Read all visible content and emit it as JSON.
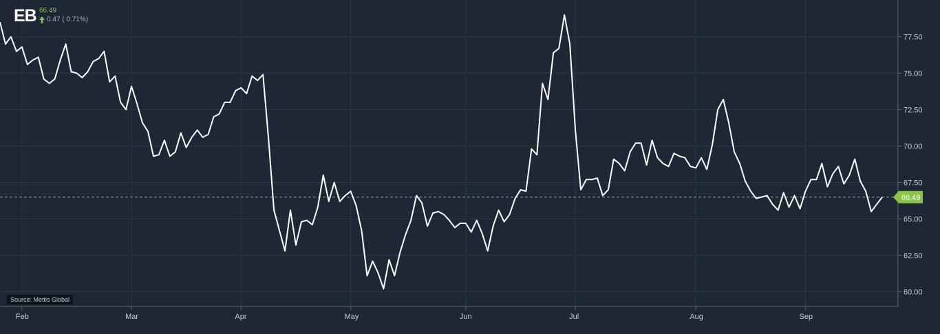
{
  "header": {
    "ticker": "EB",
    "price": "66.49",
    "change": "0.47 ( 0.71%)"
  },
  "source": "Source: Mettis Global",
  "colors": {
    "background": "#1e2834",
    "line": "#ffffff",
    "grid": "#2b3744",
    "up": "#8bc34a",
    "last_price_bg": "#8bc34a"
  },
  "icons": {
    "change_direction": "arrow-up-icon"
  },
  "chart_data": {
    "type": "line",
    "title": "",
    "xlabel": "",
    "ylabel": "",
    "x_ticks": [
      {
        "label": "Feb",
        "index": 4
      },
      {
        "label": "Mar",
        "index": 24
      },
      {
        "label": "Apr",
        "index": 44
      },
      {
        "label": "May",
        "index": 64
      },
      {
        "label": "Jun",
        "index": 85
      },
      {
        "label": "Jul",
        "index": 105
      },
      {
        "label": "Aug",
        "index": 127
      },
      {
        "label": "Sep",
        "index": 147
      }
    ],
    "y_ticks": [
      "60.00",
      "62.50",
      "65.00",
      "67.50",
      "70.00",
      "72.50",
      "75.00",
      "77.50"
    ],
    "ylim": [
      59.5,
      79.5
    ],
    "grid": true,
    "last_value": "66.49",
    "reference_line": 66.49,
    "series": [
      {
        "values": [
          78.5,
          77.0,
          77.5,
          76.5,
          76.8,
          75.6,
          75.9,
          76.1,
          74.6,
          74.3,
          74.6,
          75.9,
          77.0,
          75.1,
          75.0,
          74.7,
          75.1,
          75.8,
          76.0,
          76.5,
          74.4,
          74.8,
          73.0,
          72.5,
          74.1,
          72.9,
          71.6,
          71.0,
          69.3,
          69.4,
          70.4,
          69.3,
          69.6,
          70.9,
          69.9,
          70.6,
          71.1,
          70.6,
          70.8,
          72.0,
          72.2,
          73.0,
          73.0,
          73.8,
          74.0,
          73.6,
          74.8,
          74.5,
          74.9,
          70.5,
          65.6,
          64.2,
          62.8,
          65.6,
          63.2,
          64.8,
          64.9,
          64.6,
          65.8,
          68.0,
          66.2,
          67.5,
          66.2,
          66.6,
          66.9,
          65.9,
          64.2,
          61.1,
          62.1,
          61.3,
          60.2,
          62.2,
          61.1,
          62.7,
          63.9,
          64.9,
          66.6,
          66.1,
          64.5,
          65.4,
          65.5,
          65.3,
          64.9,
          64.4,
          64.7,
          64.7,
          64.1,
          64.9,
          64.0,
          62.8,
          64.5,
          65.6,
          64.8,
          65.3,
          66.4,
          67.0,
          66.9,
          69.8,
          69.4,
          74.3,
          73.2,
          76.4,
          76.7,
          79.0,
          77.0,
          71.1,
          67.0,
          67.7,
          67.7,
          67.8,
          66.6,
          67.0,
          69.1,
          68.8,
          68.3,
          69.6,
          70.2,
          70.2,
          68.7,
          70.4,
          69.2,
          68.8,
          68.6,
          69.5,
          69.3,
          69.2,
          68.6,
          68.5,
          69.2,
          68.4,
          70.1,
          72.5,
          73.2,
          71.6,
          69.6,
          68.8,
          67.6,
          66.9,
          66.4,
          66.5,
          66.6,
          66.0,
          65.6,
          66.8,
          65.8,
          66.6,
          65.7,
          66.9,
          67.7,
          67.7,
          68.8,
          67.2,
          68.1,
          68.6,
          67.4,
          68.0,
          69.1,
          67.6,
          66.9,
          65.5,
          66.0,
          66.49
        ]
      }
    ]
  }
}
